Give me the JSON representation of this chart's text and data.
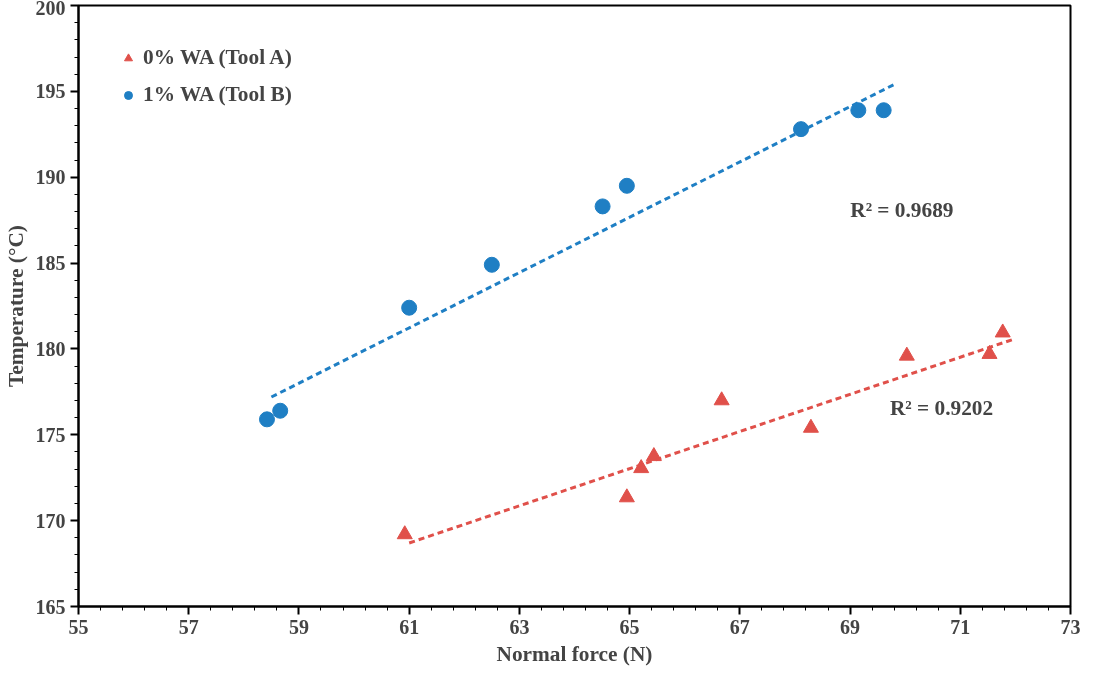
{
  "chart_data": {
    "type": "scatter",
    "xlabel": "Normal force (N)",
    "ylabel": "Temperature (°C)",
    "xlim": [
      55,
      73
    ],
    "xticks": [
      55,
      57,
      59,
      61,
      63,
      65,
      67,
      69,
      71,
      73
    ],
    "ylim": [
      165,
      200
    ],
    "yticks": [
      165,
      170,
      175,
      180,
      185,
      190,
      195,
      200
    ],
    "grid": false,
    "legend": "top left",
    "annotations": [
      "R² = 0.9689",
      "R² = 0.9202"
    ],
    "series": [
      {
        "name": "0% WA (Tool A)",
        "color": "#e0504a",
        "marker": "triangle",
        "x": [
          60.92,
          64.95,
          65.21,
          65.44,
          66.67,
          68.29,
          70.03,
          71.53,
          71.77
        ],
        "values": [
          169.2,
          171.35,
          173.05,
          173.75,
          177.0,
          175.4,
          179.6,
          179.7,
          180.95
        ]
      },
      {
        "name": "1% WA (Tool B)",
        "color": "#1f7fc4",
        "marker": "circle",
        "x": [
          58.42,
          58.66,
          61.0,
          62.5,
          64.51,
          64.95,
          68.11,
          69.15,
          69.61
        ],
        "values": [
          175.9,
          176.4,
          182.4,
          184.9,
          188.3,
          189.5,
          192.8,
          193.9,
          193.9
        ]
      },
      {
        "type": "line",
        "color": "#e0504a",
        "line_style": "dashed",
        "x": [
          61.0,
          72.0
        ],
        "values": [
          168.7,
          180.6
        ]
      },
      {
        "type": "line",
        "color": "#1f7fc4",
        "line_style": "dashed",
        "x": [
          58.5,
          69.8
        ],
        "values": [
          177.2,
          195.4
        ]
      }
    ]
  }
}
